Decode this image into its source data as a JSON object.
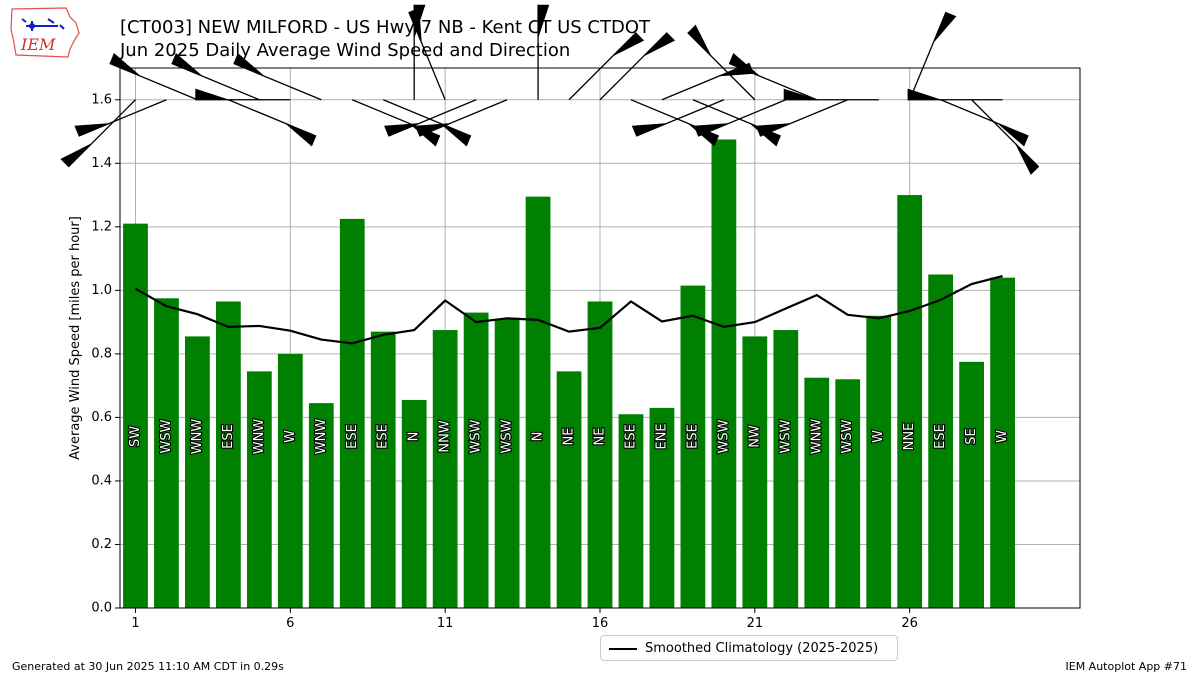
{
  "header": {
    "logo_text": "IEM",
    "title_line1": "[CT003] NEW MILFORD - US Hwy 7 NB - Kent CT US  CTDOT",
    "title_line2": "Jun 2025 Daily Average Wind Speed and Direction"
  },
  "footer": {
    "generated": "Generated at 30 Jun 2025 11:10 AM CDT in 0.29s",
    "app": "IEM Autoplot App #71"
  },
  "colors": {
    "bar": "#008000",
    "barb": "#000000",
    "line": "#000000",
    "grid": "#b0b0b0"
  },
  "chart_data": {
    "type": "bar",
    "ylabel": "Average Wind Speed [miles per hour]",
    "xlabel": "",
    "ylim": [
      0,
      1.7
    ],
    "xlim": [
      0.5,
      31.5
    ],
    "xticks": [
      1,
      6,
      11,
      16,
      21,
      26
    ],
    "yticks": [
      0.0,
      0.2,
      0.4,
      0.6,
      0.8,
      1.0,
      1.2,
      1.4,
      1.6
    ],
    "grid": true,
    "legend_position": "bottom-center, below plot",
    "days": [
      1,
      2,
      3,
      4,
      5,
      6,
      7,
      8,
      9,
      10,
      11,
      12,
      13,
      14,
      15,
      16,
      17,
      18,
      19,
      20,
      21,
      22,
      23,
      24,
      25,
      26,
      27,
      28,
      29
    ],
    "values": [
      1.21,
      0.975,
      0.855,
      0.965,
      0.745,
      0.8,
      0.645,
      1.225,
      0.87,
      0.655,
      0.875,
      0.93,
      0.91,
      1.295,
      0.745,
      0.965,
      0.61,
      0.63,
      1.015,
      1.475,
      0.855,
      0.875,
      0.725,
      0.72,
      0.92,
      1.3,
      1.05,
      0.775,
      1.04
    ],
    "directions": [
      "SW",
      "WSW",
      "WNW",
      "ESE",
      "WNW",
      "W",
      "WNW",
      "ESE",
      "ESE",
      "N",
      "NNW",
      "WSW",
      "WSW",
      "N",
      "NE",
      "NE",
      "ESE",
      "ENE",
      "ESE",
      "WSW",
      "NW",
      "WSW",
      "WNW",
      "WSW",
      "W",
      "NNE",
      "ESE",
      "SE",
      "W"
    ],
    "climatology": {
      "name": "Smoothed Climatology (2025-2025)",
      "values": [
        1.005,
        0.95,
        0.925,
        0.885,
        0.888,
        0.873,
        0.845,
        0.833,
        0.86,
        0.875,
        0.968,
        0.9,
        0.912,
        0.907,
        0.87,
        0.882,
        0.965,
        0.902,
        0.92,
        0.885,
        0.9,
        0.943,
        0.985,
        0.923,
        0.912,
        0.935,
        0.97,
        1.02,
        1.045
      ]
    }
  }
}
